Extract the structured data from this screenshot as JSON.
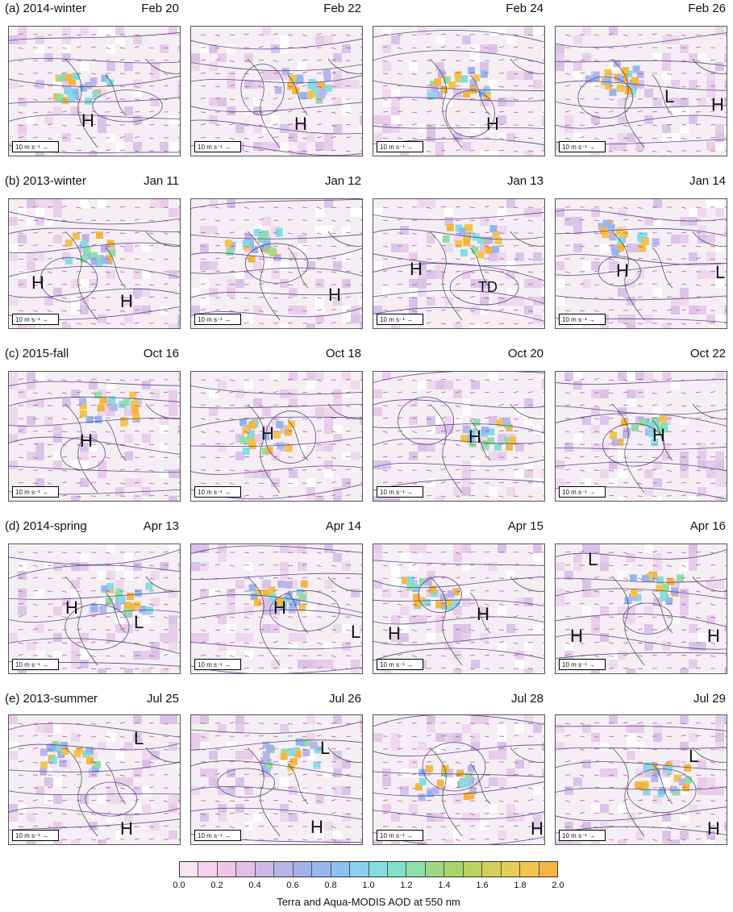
{
  "rows": [
    {
      "label": "(a) 2014-winter",
      "panels": [
        {
          "date": "Feb 20",
          "systems": [
            {
              "t": "H",
              "x": 90,
              "y": 118
            }
          ]
        },
        {
          "date": "Feb 22",
          "systems": [
            {
              "t": "H",
              "x": 128,
              "y": 122
            }
          ]
        },
        {
          "date": "Feb 24",
          "systems": [
            {
              "t": "H",
              "x": 140,
              "y": 122
            }
          ]
        },
        {
          "date": "Feb 26",
          "systems": [
            {
              "t": "L",
              "x": 135,
              "y": 88
            },
            {
              "t": "H",
              "x": 193,
              "y": 98
            }
          ]
        }
      ]
    },
    {
      "label": "(b) 2013-winter",
      "panels": [
        {
          "date": "Jan 11",
          "systems": [
            {
              "t": "H",
              "x": 28,
              "y": 105
            },
            {
              "t": "H",
              "x": 138,
              "y": 128
            }
          ]
        },
        {
          "date": "Jan 12",
          "systems": [
            {
              "t": "H",
              "x": 170,
              "y": 120
            }
          ]
        },
        {
          "date": "Jan 13",
          "systems": [
            {
              "t": "H",
              "x": 45,
              "y": 88
            },
            {
              "t": "TD",
              "x": 130,
              "y": 113
            }
          ]
        },
        {
          "date": "Jan 14",
          "systems": [
            {
              "t": "H",
              "x": 75,
              "y": 90
            },
            {
              "t": "L",
              "x": 205,
              "y": 92
            }
          ]
        }
      ]
    },
    {
      "label": "(c) 2015-fall",
      "panels": [
        {
          "date": "Oct 16",
          "systems": [
            {
              "t": "H",
              "x": 88,
              "y": 87
            }
          ]
        },
        {
          "date": "Oct 18",
          "systems": [
            {
              "t": "H",
              "x": 87,
              "y": 78
            }
          ]
        },
        {
          "date": "Oct 20",
          "systems": [
            {
              "t": "H",
              "x": 118,
              "y": 82
            }
          ]
        },
        {
          "date": "Oct 22",
          "systems": [
            {
              "t": "H",
              "x": 120,
              "y": 80
            }
          ]
        }
      ]
    },
    {
      "label": "(d) 2014-spring",
      "panels": [
        {
          "date": "Apr 13",
          "systems": [
            {
              "t": "H",
              "x": 70,
              "y": 80
            },
            {
              "t": "L",
              "x": 155,
              "y": 98
            }
          ]
        },
        {
          "date": "Apr 14",
          "systems": [
            {
              "t": "H",
              "x": 102,
              "y": 80
            },
            {
              "t": "L",
              "x": 205,
              "y": 110
            }
          ]
        },
        {
          "date": "Apr 15",
          "systems": [
            {
              "t": "H",
              "x": 18,
              "y": 112
            },
            {
              "t": "H",
              "x": 128,
              "y": 88
            }
          ]
        },
        {
          "date": "Apr 16",
          "systems": [
            {
              "t": "L",
              "x": 40,
              "y": 20
            },
            {
              "t": "H",
              "x": 18,
              "y": 115
            },
            {
              "t": "H",
              "x": 188,
              "y": 115
            }
          ]
        }
      ]
    },
    {
      "label": "(e) 2013-summer",
      "panels": [
        {
          "date": "Jul 25",
          "systems": [
            {
              "t": "L",
              "x": 155,
              "y": 30
            },
            {
              "t": "H",
              "x": 138,
              "y": 142
            }
          ]
        },
        {
          "date": "Jul 26",
          "systems": [
            {
              "t": "L",
              "x": 160,
              "y": 42
            },
            {
              "t": "H",
              "x": 148,
              "y": 140
            }
          ]
        },
        {
          "date": "Jul 28",
          "systems": [
            {
              "t": "H",
              "x": 195,
              "y": 142
            }
          ]
        },
        {
          "date": "Jul 29",
          "systems": [
            {
              "t": "L",
              "x": 165,
              "y": 52
            },
            {
              "t": "H",
              "x": 188,
              "y": 142
            }
          ]
        }
      ]
    }
  ],
  "wind_scale_label": "10 m s⁻¹ →",
  "colorbar": {
    "ticks": [
      "0.0",
      "0.2",
      "0.4",
      "0.6",
      "0.8",
      "1.0",
      "1.2",
      "1.4",
      "1.6",
      "1.8",
      "2.0"
    ],
    "colors": [
      "#fbe3f1",
      "#f7d2ec",
      "#eec6e6",
      "#dfc0e4",
      "#cdb8e6",
      "#b8b5ea",
      "#a4b0ea",
      "#95b6ee",
      "#8cc3f0",
      "#88d0ee",
      "#85dce4",
      "#84e0cc",
      "#8fe0a6",
      "#9dd982",
      "#a9d46a",
      "#bcd25e",
      "#d3d05a",
      "#e8cd54",
      "#f2c44c",
      "#f5b53f"
    ],
    "title": "Terra and Aqua-MODIS AOD at 550 nm"
  }
}
